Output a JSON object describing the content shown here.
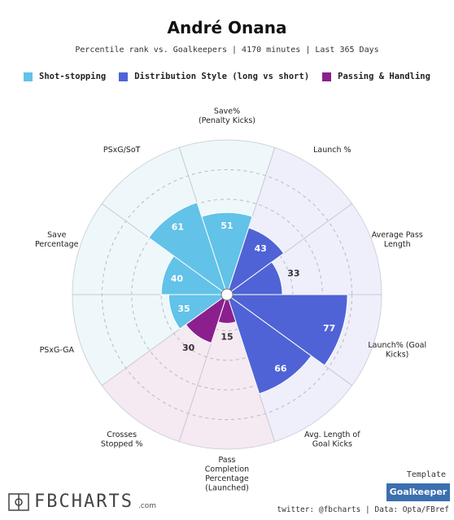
{
  "title": "André Onana",
  "subtitle": "Percentile rank vs. Goalkeepers | 4170 minutes | Last 365 Days",
  "legend": [
    {
      "label": "Shot-stopping",
      "color": "#62c2e8"
    },
    {
      "label": "Distribution Style (long vs short)",
      "color": "#4f63d6"
    },
    {
      "label": "Passing & Handling",
      "color": "#8c1f8e"
    }
  ],
  "chart_data": {
    "type": "polar-bar",
    "title": "André Onana",
    "rmax": 100,
    "grid_rings": [
      20,
      40,
      60,
      80
    ],
    "categories": [
      {
        "label": "Save%\n(Penalty Kicks)",
        "value": 51,
        "group": "Shot-stopping"
      },
      {
        "label": "Launch %",
        "value": 43,
        "group": "Distribution Style (long vs short)"
      },
      {
        "label": "Average Pass\nLength",
        "value": 33,
        "group": "Distribution Style (long vs short)"
      },
      {
        "label": "Launch% (Goal\nKicks)",
        "value": 77,
        "group": "Distribution Style (long vs short)"
      },
      {
        "label": "Avg. Length of\nGoal Kicks",
        "value": 66,
        "group": "Distribution Style (long vs short)"
      },
      {
        "label": "Pass\nCompletion\nPercentage\n(Launched)",
        "value": 15,
        "group": "Passing & Handling"
      },
      {
        "label": "Crosses\nStopped %",
        "value": 30,
        "group": "Passing & Handling"
      },
      {
        "label": "PSxG-GA",
        "value": 35,
        "group": "Shot-stopping"
      },
      {
        "label": "Save\nPercentage",
        "value": 40,
        "group": "Shot-stopping"
      },
      {
        "label": "PSxG/SoT",
        "value": 61,
        "group": "Shot-stopping"
      }
    ]
  },
  "footer": {
    "logo": "FBCHARTS",
    "logo_suffix": ".com",
    "template_label": "Template",
    "template_value": "Goalkeeper",
    "credits": "twitter: @fbcharts | Data: Opta/FBref"
  }
}
